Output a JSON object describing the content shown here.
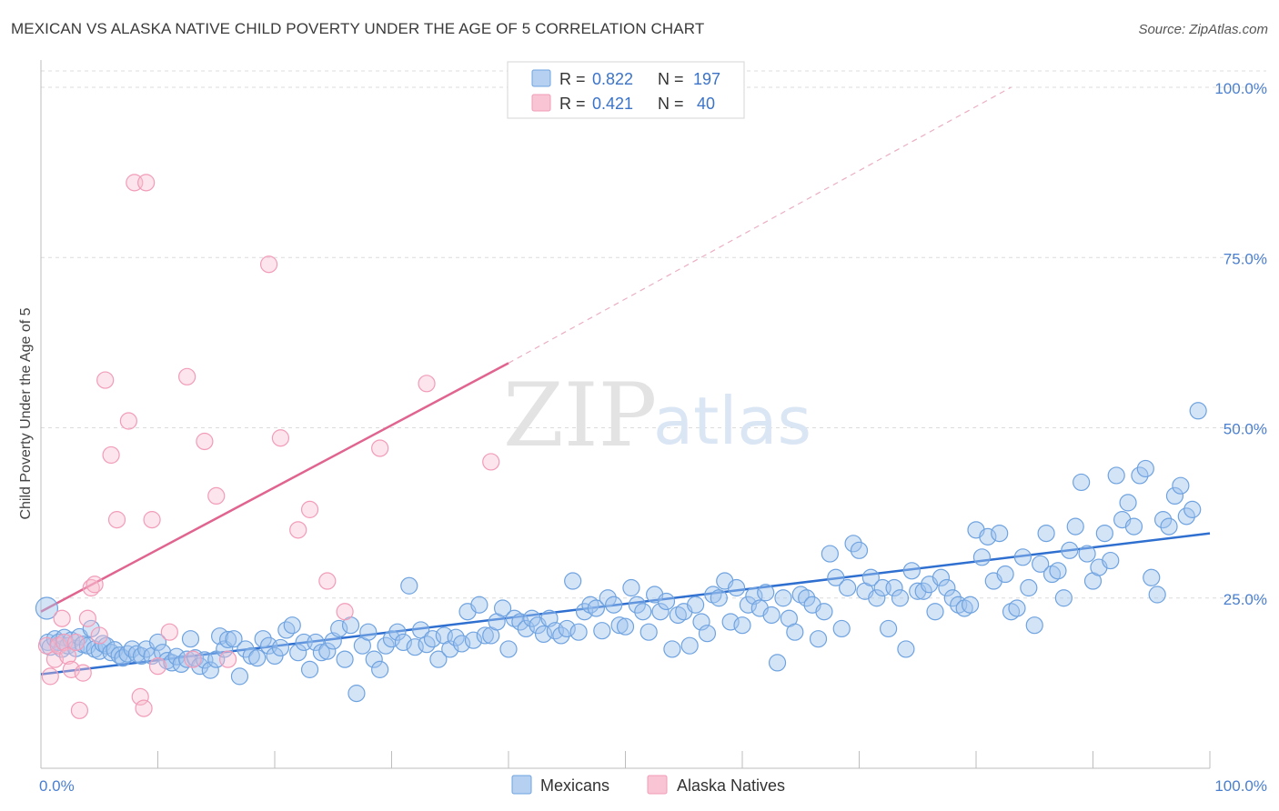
{
  "title": "MEXICAN VS ALASKA NATIVE CHILD POVERTY UNDER THE AGE OF 5 CORRELATION CHART",
  "source": "Source: ZipAtlas.com",
  "watermark": {
    "zip": "ZIP",
    "atlas": "atlas"
  },
  "colors": {
    "blue": "#6fa3e0",
    "blue_line": "#2f6fd0",
    "pink": "#f29cb8",
    "pink_line": "#e0648f",
    "tick": "#4a7fd0"
  },
  "legend_top": {
    "rows": [
      {
        "r_label": "R = ",
        "r_value": "0.822",
        "n_label": "N = ",
        "n_value": "197"
      },
      {
        "r_label": "R = ",
        "r_value": "0.421",
        "n_label": "N = ",
        "n_value": "40"
      }
    ]
  },
  "chart_data": {
    "type": "scatter",
    "xlabel": "",
    "ylabel": "Child Poverty Under the Age of 5",
    "xlim": [
      0,
      100
    ],
    "ylim": [
      0,
      100
    ],
    "x_tick_labels": [
      "0.0%",
      "100.0%"
    ],
    "y_tick_labels": [
      "100.0%",
      "75.0%",
      "50.0%",
      "25.0%"
    ],
    "y_ticks": [
      100,
      75,
      50,
      25
    ],
    "grid": true,
    "legend": [
      "Mexicans",
      "Alaska Natives"
    ],
    "series": [
      {
        "name": "Mexicans",
        "r": 0.822,
        "n": 197,
        "trend": {
          "x": [
            0,
            100
          ],
          "y": [
            13.8,
            34.5
          ]
        },
        "points": [
          [
            0.5,
            23.5
          ],
          [
            0.6,
            18.5
          ],
          [
            0.8,
            17.8
          ],
          [
            1.2,
            19.0
          ],
          [
            1.5,
            18.5
          ],
          [
            1.8,
            17.5
          ],
          [
            2.0,
            19.2
          ],
          [
            2.3,
            18.0
          ],
          [
            2.6,
            18.8
          ],
          [
            3.0,
            17.6
          ],
          [
            3.3,
            19.3
          ],
          [
            3.6,
            18.2
          ],
          [
            4.0,
            18.0
          ],
          [
            4.3,
            20.5
          ],
          [
            4.6,
            17.5
          ],
          [
            5.0,
            17.2
          ],
          [
            5.3,
            18.3
          ],
          [
            5.6,
            18.0
          ],
          [
            6.0,
            17.0
          ],
          [
            6.3,
            17.4
          ],
          [
            6.7,
            16.6
          ],
          [
            7.0,
            16.2
          ],
          [
            7.4,
            16.8
          ],
          [
            7.8,
            17.5
          ],
          [
            8.2,
            16.8
          ],
          [
            8.6,
            16.5
          ],
          [
            9.0,
            17.5
          ],
          [
            9.5,
            16.5
          ],
          [
            10.0,
            18.5
          ],
          [
            10.4,
            17.0
          ],
          [
            10.8,
            15.8
          ],
          [
            11.2,
            15.5
          ],
          [
            11.6,
            16.4
          ],
          [
            12.0,
            15.3
          ],
          [
            12.5,
            16.0
          ],
          [
            12.8,
            19.0
          ],
          [
            13.2,
            16.2
          ],
          [
            13.6,
            15.0
          ],
          [
            14.0,
            15.9
          ],
          [
            14.5,
            14.4
          ],
          [
            15.0,
            16.0
          ],
          [
            15.3,
            19.4
          ],
          [
            15.7,
            17.5
          ],
          [
            16.0,
            18.9
          ],
          [
            16.5,
            19.0
          ],
          [
            17.0,
            13.5
          ],
          [
            17.5,
            17.5
          ],
          [
            18.0,
            16.5
          ],
          [
            18.5,
            16.2
          ],
          [
            19.0,
            19.0
          ],
          [
            19.5,
            18.0
          ],
          [
            20.0,
            16.5
          ],
          [
            20.5,
            17.7
          ],
          [
            21.0,
            20.3
          ],
          [
            21.5,
            21.0
          ],
          [
            22.0,
            17.0
          ],
          [
            22.5,
            18.5
          ],
          [
            23.0,
            14.5
          ],
          [
            23.5,
            18.5
          ],
          [
            24.0,
            17.0
          ],
          [
            24.5,
            17.2
          ],
          [
            25.0,
            18.7
          ],
          [
            25.5,
            20.5
          ],
          [
            26.0,
            16.0
          ],
          [
            26.5,
            21.0
          ],
          [
            27.0,
            11.0
          ],
          [
            27.5,
            18.0
          ],
          [
            28.0,
            20.0
          ],
          [
            28.5,
            16.0
          ],
          [
            29.0,
            14.5
          ],
          [
            29.5,
            18.0
          ],
          [
            30.0,
            19.0
          ],
          [
            30.5,
            20.0
          ],
          [
            31.0,
            18.5
          ],
          [
            31.5,
            26.8
          ],
          [
            32.0,
            17.8
          ],
          [
            32.5,
            20.3
          ],
          [
            33.0,
            18.2
          ],
          [
            33.5,
            19.0
          ],
          [
            34.0,
            16.0
          ],
          [
            34.5,
            19.5
          ],
          [
            35.0,
            17.5
          ],
          [
            35.5,
            19.2
          ],
          [
            36.0,
            18.3
          ],
          [
            36.5,
            23.0
          ],
          [
            37.0,
            18.8
          ],
          [
            37.5,
            24.0
          ],
          [
            38.0,
            19.5
          ],
          [
            38.5,
            19.5
          ],
          [
            39.0,
            21.5
          ],
          [
            39.5,
            23.5
          ],
          [
            40.0,
            17.5
          ],
          [
            40.5,
            22.0
          ],
          [
            41.0,
            21.5
          ],
          [
            41.5,
            20.5
          ],
          [
            42.0,
            22.0
          ],
          [
            42.5,
            21.0
          ],
          [
            43.0,
            19.7
          ],
          [
            43.5,
            22.0
          ],
          [
            44.0,
            20.2
          ],
          [
            44.5,
            19.5
          ],
          [
            45.0,
            20.5
          ],
          [
            45.5,
            27.5
          ],
          [
            46.0,
            20.0
          ],
          [
            46.5,
            23.0
          ],
          [
            47.0,
            24.0
          ],
          [
            47.5,
            23.5
          ],
          [
            48.0,
            20.2
          ],
          [
            48.5,
            25.0
          ],
          [
            49.0,
            24.0
          ],
          [
            49.5,
            21.0
          ],
          [
            50.0,
            20.8
          ],
          [
            50.5,
            26.5
          ],
          [
            51.0,
            24.0
          ],
          [
            51.5,
            23.0
          ],
          [
            52.0,
            20.0
          ],
          [
            52.5,
            25.5
          ],
          [
            53.0,
            23.0
          ],
          [
            53.5,
            24.5
          ],
          [
            54.0,
            17.5
          ],
          [
            54.5,
            22.5
          ],
          [
            55.0,
            23.0
          ],
          [
            55.5,
            18.0
          ],
          [
            56.0,
            24.0
          ],
          [
            56.5,
            21.5
          ],
          [
            57.0,
            19.8
          ],
          [
            57.5,
            25.5
          ],
          [
            58.0,
            25.0
          ],
          [
            58.5,
            27.5
          ],
          [
            59.0,
            21.5
          ],
          [
            59.5,
            26.5
          ],
          [
            60.0,
            21.0
          ],
          [
            60.5,
            24.0
          ],
          [
            61.0,
            25.3
          ],
          [
            61.5,
            23.5
          ],
          [
            62.0,
            25.8
          ],
          [
            62.5,
            22.5
          ],
          [
            63.0,
            15.5
          ],
          [
            63.5,
            25.0
          ],
          [
            64.0,
            22.0
          ],
          [
            64.5,
            20.0
          ],
          [
            65.0,
            25.5
          ],
          [
            65.5,
            25.0
          ],
          [
            66.0,
            24.0
          ],
          [
            66.5,
            19.0
          ],
          [
            67.0,
            23.0
          ],
          [
            67.5,
            31.5
          ],
          [
            68.0,
            28.0
          ],
          [
            68.5,
            20.5
          ],
          [
            69.0,
            26.5
          ],
          [
            69.5,
            33.0
          ],
          [
            70.0,
            32.0
          ],
          [
            70.5,
            26.0
          ],
          [
            71.0,
            28.0
          ],
          [
            71.5,
            25.0
          ],
          [
            72.0,
            26.5
          ],
          [
            72.5,
            20.5
          ],
          [
            73.0,
            26.5
          ],
          [
            73.5,
            25.0
          ],
          [
            74.0,
            17.5
          ],
          [
            74.5,
            29.0
          ],
          [
            75.0,
            26.0
          ],
          [
            75.5,
            26.0
          ],
          [
            76.0,
            27.0
          ],
          [
            76.5,
            23.0
          ],
          [
            77.0,
            28.0
          ],
          [
            77.5,
            26.5
          ],
          [
            78.0,
            25.0
          ],
          [
            78.5,
            24.0
          ],
          [
            79.0,
            23.5
          ],
          [
            79.5,
            24.0
          ],
          [
            80.0,
            35.0
          ],
          [
            80.5,
            31.0
          ],
          [
            81.0,
            34.0
          ],
          [
            81.5,
            27.5
          ],
          [
            82.0,
            34.5
          ],
          [
            82.5,
            28.5
          ],
          [
            83.0,
            23.0
          ],
          [
            83.5,
            23.5
          ],
          [
            84.0,
            31.0
          ],
          [
            84.5,
            26.5
          ],
          [
            85.0,
            21.0
          ],
          [
            85.5,
            30.0
          ],
          [
            86.0,
            34.5
          ],
          [
            86.5,
            28.5
          ],
          [
            87.0,
            29.0
          ],
          [
            87.5,
            25.0
          ],
          [
            88.0,
            32.0
          ],
          [
            88.5,
            35.5
          ],
          [
            89.0,
            42.0
          ],
          [
            89.5,
            31.5
          ],
          [
            90.0,
            27.5
          ],
          [
            90.5,
            29.5
          ],
          [
            91.0,
            34.5
          ],
          [
            91.5,
            30.5
          ],
          [
            92.0,
            43.0
          ],
          [
            92.5,
            36.5
          ],
          [
            93.0,
            39.0
          ],
          [
            93.5,
            35.5
          ],
          [
            94.0,
            43.0
          ],
          [
            94.5,
            44.0
          ],
          [
            95.0,
            28.0
          ],
          [
            95.5,
            25.5
          ],
          [
            96.0,
            36.5
          ],
          [
            96.5,
            35.5
          ],
          [
            97.0,
            40.0
          ],
          [
            97.5,
            41.5
          ],
          [
            98.0,
            37.0
          ],
          [
            98.5,
            38.0
          ],
          [
            99.0,
            52.5
          ]
        ]
      },
      {
        "name": "Alaska Natives",
        "r": 0.421,
        "n": 40,
        "trend": {
          "x": [
            0,
            40
          ],
          "y": [
            23.0,
            59.5
          ],
          "dashed_to": {
            "x": 83,
            "y": 100
          }
        },
        "points": [
          [
            0.5,
            18.0
          ],
          [
            0.8,
            13.5
          ],
          [
            1.2,
            16.0
          ],
          [
            1.5,
            18.0
          ],
          [
            1.8,
            22.0
          ],
          [
            2.0,
            18.5
          ],
          [
            2.3,
            16.5
          ],
          [
            2.6,
            14.5
          ],
          [
            3.0,
            18.5
          ],
          [
            3.3,
            8.5
          ],
          [
            3.6,
            14.0
          ],
          [
            4.0,
            22.0
          ],
          [
            4.3,
            26.5
          ],
          [
            4.6,
            27.0
          ],
          [
            5.0,
            19.5
          ],
          [
            5.5,
            57.0
          ],
          [
            6.0,
            46.0
          ],
          [
            6.5,
            36.5
          ],
          [
            7.5,
            51.0
          ],
          [
            8.0,
            86.0
          ],
          [
            8.5,
            10.5
          ],
          [
            8.8,
            8.8
          ],
          [
            9.0,
            86.0
          ],
          [
            9.5,
            36.5
          ],
          [
            10.0,
            15.0
          ],
          [
            11.0,
            20.0
          ],
          [
            12.5,
            57.5
          ],
          [
            13.0,
            16.0
          ],
          [
            14.0,
            48.0
          ],
          [
            15.0,
            40.0
          ],
          [
            16.0,
            16.0
          ],
          [
            19.5,
            74.0
          ],
          [
            20.5,
            48.5
          ],
          [
            22.0,
            35.0
          ],
          [
            23.0,
            38.0
          ],
          [
            24.5,
            27.5
          ],
          [
            26.0,
            23.0
          ],
          [
            29.0,
            47.0
          ],
          [
            33.0,
            56.5
          ],
          [
            38.5,
            45.0
          ]
        ]
      }
    ]
  },
  "bottom_legend": {
    "items": [
      "Mexicans",
      "Alaska Natives"
    ]
  }
}
